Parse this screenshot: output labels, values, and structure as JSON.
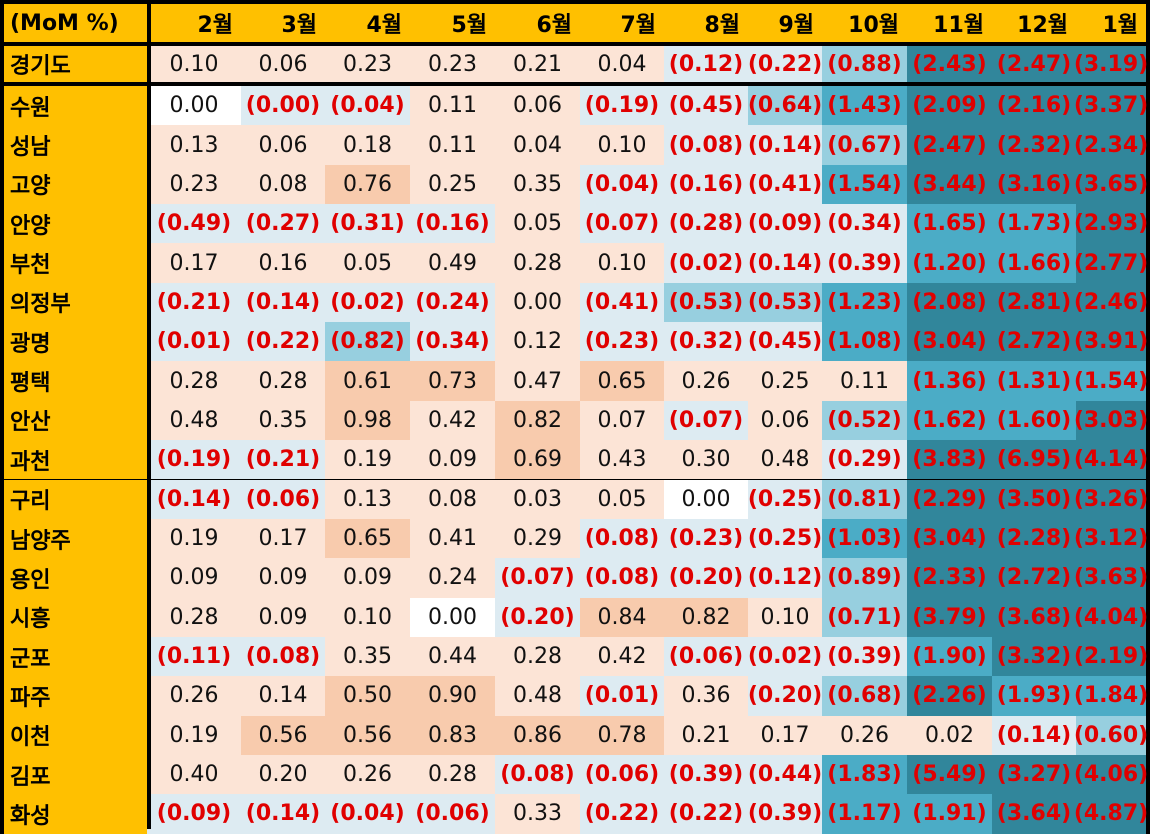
{
  "chart_data": {
    "type": "table",
    "corner_label": "(MoM %)",
    "columns": [
      "2월",
      "3월",
      "4월",
      "5월",
      "6월",
      "7월",
      "8월",
      "9월",
      "10월",
      "11월",
      "12월",
      "1월"
    ],
    "rows": [
      {
        "name": "경기도",
        "values": [
          0.1,
          0.06,
          0.23,
          0.23,
          0.21,
          0.04,
          -0.12,
          -0.22,
          -0.88,
          -2.43,
          -2.47,
          -3.19
        ]
      },
      {
        "name": "수원",
        "values": [
          0.0,
          -0.0,
          -0.04,
          0.11,
          0.06,
          -0.19,
          -0.45,
          -0.64,
          -1.43,
          -2.09,
          -2.16,
          -3.37
        ]
      },
      {
        "name": "성남",
        "values": [
          0.13,
          0.06,
          0.18,
          0.11,
          0.04,
          0.1,
          -0.08,
          -0.14,
          -0.67,
          -2.47,
          -2.32,
          -2.34
        ]
      },
      {
        "name": "고양",
        "values": [
          0.23,
          0.08,
          0.76,
          0.25,
          0.35,
          -0.04,
          -0.16,
          -0.41,
          -1.54,
          -3.44,
          -3.16,
          -3.65
        ]
      },
      {
        "name": "안양",
        "values": [
          -0.49,
          -0.27,
          -0.31,
          -0.16,
          0.05,
          -0.07,
          -0.28,
          -0.09,
          -0.34,
          -1.65,
          -1.73,
          -2.93
        ]
      },
      {
        "name": "부천",
        "values": [
          0.17,
          0.16,
          0.05,
          0.49,
          0.28,
          0.1,
          -0.02,
          -0.14,
          -0.39,
          -1.2,
          -1.66,
          -2.77
        ]
      },
      {
        "name": "의정부",
        "values": [
          -0.21,
          -0.14,
          -0.02,
          -0.24,
          0.0,
          -0.41,
          -0.53,
          -0.53,
          -1.23,
          -2.08,
          -2.81,
          -2.46
        ]
      },
      {
        "name": "광명",
        "values": [
          -0.01,
          -0.22,
          -0.82,
          -0.34,
          0.12,
          -0.23,
          -0.32,
          -0.45,
          -1.08,
          -3.04,
          -2.72,
          -3.91
        ]
      },
      {
        "name": "평택",
        "values": [
          0.28,
          0.28,
          0.61,
          0.73,
          0.47,
          0.65,
          0.26,
          0.25,
          0.11,
          -1.36,
          -1.31,
          -1.54
        ]
      },
      {
        "name": "안산",
        "values": [
          0.48,
          0.35,
          0.98,
          0.42,
          0.82,
          0.07,
          -0.07,
          0.06,
          -0.52,
          -1.62,
          -1.6,
          -3.03
        ]
      },
      {
        "name": "과천",
        "values": [
          -0.19,
          -0.21,
          0.19,
          0.09,
          0.69,
          0.43,
          0.3,
          0.48,
          -0.29,
          -3.83,
          -6.95,
          -4.14
        ]
      },
      {
        "name": "구리",
        "values": [
          -0.14,
          -0.06,
          0.13,
          0.08,
          0.03,
          0.05,
          0.0,
          -0.25,
          -0.81,
          -2.29,
          -3.5,
          -3.26
        ]
      },
      {
        "name": "남양주",
        "values": [
          0.19,
          0.17,
          0.65,
          0.41,
          0.29,
          -0.08,
          -0.23,
          -0.25,
          -1.03,
          -3.04,
          -2.28,
          -3.12
        ]
      },
      {
        "name": "용인",
        "values": [
          0.09,
          0.09,
          0.09,
          0.24,
          -0.07,
          -0.08,
          -0.2,
          -0.12,
          -0.89,
          -2.33,
          -2.72,
          -3.63
        ]
      },
      {
        "name": "시흥",
        "values": [
          0.28,
          0.09,
          0.1,
          0.0,
          -0.2,
          0.84,
          0.82,
          0.1,
          -0.71,
          -3.79,
          -3.68,
          -4.04
        ]
      },
      {
        "name": "군포",
        "values": [
          -0.11,
          -0.08,
          0.35,
          0.44,
          0.28,
          0.42,
          -0.06,
          -0.02,
          -0.39,
          -1.9,
          -3.32,
          -2.19
        ]
      },
      {
        "name": "파주",
        "values": [
          0.26,
          0.14,
          0.5,
          0.9,
          0.48,
          -0.01,
          0.36,
          -0.2,
          -0.68,
          -2.26,
          -1.93,
          -1.84
        ]
      },
      {
        "name": "이천",
        "values": [
          0.19,
          0.56,
          0.56,
          0.83,
          0.86,
          0.78,
          0.21,
          0.17,
          0.26,
          0.02,
          -0.14,
          -0.6
        ]
      },
      {
        "name": "김포",
        "values": [
          0.4,
          0.2,
          0.26,
          0.28,
          -0.08,
          -0.06,
          -0.39,
          -0.44,
          -1.83,
          -5.49,
          -3.27,
          -4.06
        ]
      },
      {
        "name": "화성",
        "values": [
          -0.09,
          -0.14,
          -0.04,
          -0.06,
          0.33,
          -0.22,
          -0.22,
          -0.39,
          -1.17,
          -1.91,
          -3.64,
          -4.87
        ]
      }
    ],
    "neutral_cells": [
      [
        1,
        0
      ],
      [
        11,
        6
      ],
      [
        14,
        3
      ]
    ],
    "negative_format": "parentheses",
    "colors": {
      "header_bg": "#FFC000",
      "negative_text": "#E00000",
      "positive_text": "#111111",
      "pos_light": "#FCE4D6",
      "pos_strong": "#F8CBAD",
      "neutral": "#FFFFFF",
      "neg_1": "#DDEBF2",
      "neg_2": "#97CFDF",
      "neg_3": "#4BACC6",
      "neg_4": "#31869B"
    }
  }
}
